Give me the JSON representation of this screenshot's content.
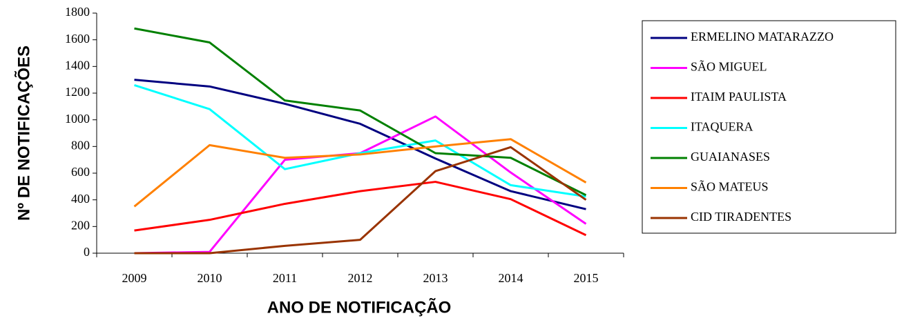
{
  "chart_data": {
    "type": "line",
    "xlabel": "ANO DE NOTIFICAÇÃO",
    "ylabel": "Nº DE NOTIFICAÇÕES",
    "categories": [
      "2009",
      "2010",
      "2011",
      "2012",
      "2013",
      "2014",
      "2015"
    ],
    "series": [
      {
        "name": "ERMELINO MATARAZZO",
        "color": "#000080",
        "values": [
          1300,
          1250,
          1120,
          970,
          710,
          465,
          330
        ]
      },
      {
        "name": "SÃO MIGUEL",
        "color": "#ff00ff",
        "values": [
          0,
          10,
          700,
          750,
          1025,
          605,
          220
        ]
      },
      {
        "name": "ITAIM PAULISTA",
        "color": "#ff0000",
        "values": [
          170,
          250,
          370,
          465,
          535,
          405,
          135
        ]
      },
      {
        "name": "ITAQUERA",
        "color": "#00ffff",
        "values": [
          1260,
          1080,
          630,
          750,
          845,
          510,
          425
        ]
      },
      {
        "name": "GUAIANASES",
        "color": "#008000",
        "values": [
          1685,
          1580,
          1145,
          1070,
          750,
          715,
          435
        ]
      },
      {
        "name": "SÃO MATEUS",
        "color": "#ff8000",
        "values": [
          350,
          810,
          715,
          740,
          800,
          855,
          530
        ]
      },
      {
        "name": "CID TIRADENTES",
        "color": "#993300",
        "values": [
          0,
          0,
          55,
          100,
          615,
          795,
          400
        ]
      }
    ],
    "ylim": [
      0,
      1800
    ],
    "yticks": [
      0,
      200,
      400,
      600,
      800,
      1000,
      1200,
      1400,
      1600,
      1800
    ],
    "grid": false,
    "legend": "right"
  }
}
